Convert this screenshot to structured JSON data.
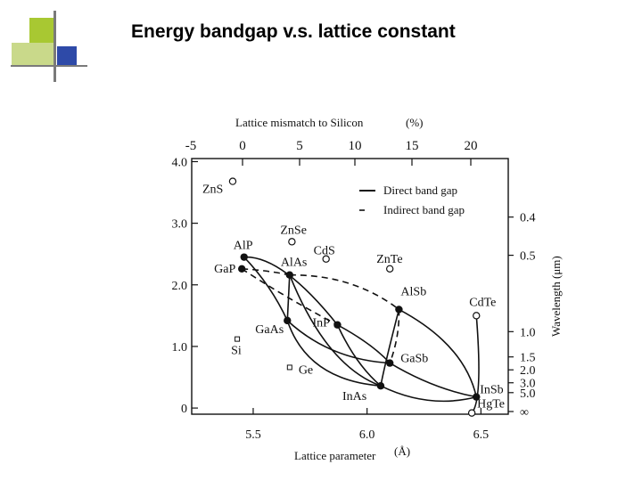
{
  "slide": {
    "title": "Energy bandgap v.s. lattice constant"
  },
  "colors": {
    "deco_lime": "#a8c832",
    "deco_blue": "#2e4aa8",
    "deco_light": "#c9d98a"
  },
  "chart_data": {
    "type": "scatter",
    "top_axis": {
      "label": "Lattice mismatch to Silicon",
      "unit": "(%)",
      "ticks": [
        "-5",
        "0",
        "5",
        "10",
        "15",
        "20"
      ]
    },
    "x_axis": {
      "label": "Lattice parameter",
      "unit": "(Å)",
      "ticks": [
        "5.5",
        "6.0",
        "6.5"
      ],
      "range": [
        5.23,
        6.62
      ]
    },
    "y_axis": {
      "ticks": [
        "0",
        "1.0",
        "2.0",
        "3.0",
        "4.0"
      ],
      "range": [
        -0.1,
        4.05
      ]
    },
    "right_axis": {
      "label": "Wavelength (μm)",
      "ticks": [
        "0.4",
        "0.5",
        "1.0",
        "1.5",
        "2.0",
        "3.0",
        "5.0",
        "∞"
      ]
    },
    "legend": {
      "direct": "Direct band gap",
      "indirect": "Indirect band gap",
      "position": "top-right"
    },
    "direct_points": [
      {
        "name": "AlP",
        "a": 5.46,
        "eg": 2.45
      },
      {
        "name": "GaAs",
        "a": 5.65,
        "eg": 1.42
      },
      {
        "name": "InP",
        "a": 5.87,
        "eg": 1.35
      },
      {
        "name": "GaSb",
        "a": 6.1,
        "eg": 0.73
      },
      {
        "name": "InAs",
        "a": 6.06,
        "eg": 0.36
      },
      {
        "name": "InSb",
        "a": 6.48,
        "eg": 0.18
      },
      {
        "name": "AlSb",
        "a": 6.14,
        "eg": 1.6
      }
    ],
    "indirect_points": [
      {
        "name": "GaP",
        "a": 5.45,
        "eg": 2.26
      },
      {
        "name": "AlAs",
        "a": 5.66,
        "eg": 2.16
      }
    ],
    "open_points": [
      {
        "name": "ZnS",
        "a": 5.41,
        "eg": 3.68
      },
      {
        "name": "ZnSe",
        "a": 5.67,
        "eg": 2.7
      },
      {
        "name": "CdS",
        "a": 5.82,
        "eg": 2.42
      },
      {
        "name": "ZnTe",
        "a": 6.1,
        "eg": 2.26
      },
      {
        "name": "CdTe",
        "a": 6.48,
        "eg": 1.5
      },
      {
        "name": "HgTe",
        "a": 6.46,
        "eg": -0.08
      }
    ],
    "square_points": [
      {
        "name": "Si",
        "a": 5.43,
        "eg": 1.12
      },
      {
        "name": "Ge",
        "a": 5.66,
        "eg": 0.66
      }
    ]
  }
}
